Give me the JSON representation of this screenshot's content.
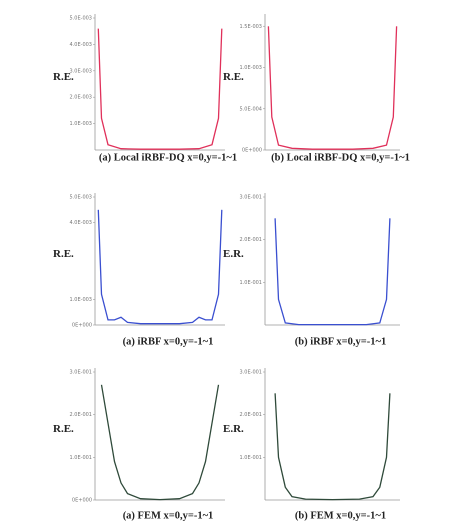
{
  "chart_data": [
    {
      "type": "line",
      "caption": "(a) Local iRBF-DQ x=0,y=-1~1",
      "ylabel": "R.E.",
      "color": "#e0305a",
      "x": [
        -0.95,
        -0.9,
        -0.8,
        -0.6,
        -0.3,
        0,
        0.3,
        0.6,
        0.8,
        0.9,
        0.95
      ],
      "values": [
        0.0046,
        0.0012,
        0.0002,
        5e-05,
        3e-05,
        3e-05,
        3e-05,
        5e-05,
        0.0002,
        0.0012,
        0.0046
      ],
      "xlim": [
        -1,
        1
      ],
      "ylim": [
        0,
        0.005
      ],
      "yticks": [
        {
          "value": 0.001,
          "label": "1.0E-003"
        },
        {
          "value": 0.002,
          "label": "2.0E-003"
        },
        {
          "value": 0.003,
          "label": "3.0E-003"
        },
        {
          "value": 0.004,
          "label": "4.0E-003"
        },
        {
          "value": 0.005,
          "label": "5.0E-003"
        }
      ]
    },
    {
      "type": "line",
      "caption": "(b) Local iRBF-DQ x=0,y=-1~1",
      "ylabel": "R.E.",
      "color": "#e0305a",
      "x": [
        -0.95,
        -0.9,
        -0.8,
        -0.6,
        -0.3,
        0,
        0.3,
        0.6,
        0.8,
        0.9,
        0.95
      ],
      "values": [
        0.0015,
        0.0004,
        6e-05,
        2e-05,
        1e-05,
        1e-05,
        1e-05,
        2e-05,
        6e-05,
        0.0004,
        0.0015
      ],
      "xlim": [
        -1,
        1
      ],
      "ylim": [
        0,
        0.0016
      ],
      "yticks": [
        {
          "value": 0,
          "label": "0E+000"
        },
        {
          "value": 0.0005,
          "label": "5.0E-004"
        },
        {
          "value": 0.001,
          "label": "1.0E-003"
        },
        {
          "value": 0.0015,
          "label": "1.5E-003"
        }
      ]
    },
    {
      "type": "line",
      "caption": "(a) iRBF x=0,y=-1~1",
      "ylabel": "R.E.",
      "color": "#3a4fd0",
      "x": [
        -0.95,
        -0.9,
        -0.8,
        -0.7,
        -0.6,
        -0.5,
        -0.3,
        0,
        0.3,
        0.5,
        0.6,
        0.7,
        0.8,
        0.9,
        0.95
      ],
      "values": [
        0.0045,
        0.0012,
        0.0002,
        0.0002,
        0.0003,
        0.0001,
        5e-05,
        5e-05,
        5e-05,
        0.0001,
        0.0003,
        0.0002,
        0.0002,
        0.0012,
        0.0045
      ],
      "xlim": [
        -1,
        1
      ],
      "ylim": [
        0,
        0.005
      ],
      "yticks": [
        {
          "value": 0,
          "label": "0E+000"
        },
        {
          "value": 0.001,
          "label": "1.0E-003"
        },
        {
          "value": 0.004,
          "label": "4.0E-003"
        },
        {
          "value": 0.005,
          "label": "5.0E-003"
        }
      ]
    },
    {
      "type": "line",
      "caption": "(b) iRBF x=0,y=-1~1",
      "ylabel": "E.R.",
      "color": "#3a4fd0",
      "x": [
        -0.85,
        -0.8,
        -0.7,
        -0.5,
        -0.3,
        0,
        0.3,
        0.5,
        0.7,
        0.8,
        0.85
      ],
      "values": [
        0.25,
        0.06,
        0.005,
        0.001,
        0.001,
        0.001,
        0.001,
        0.001,
        0.005,
        0.06,
        0.25
      ],
      "xlim": [
        -1,
        1
      ],
      "ylim": [
        0,
        0.3
      ],
      "yticks": [
        {
          "value": 0.1,
          "label": "1.0E-001"
        },
        {
          "value": 0.2,
          "label": "2.0E-001"
        },
        {
          "value": 0.3,
          "label": "3.0E-001"
        }
      ]
    },
    {
      "type": "line",
      "caption": "(a) FEM x=0,y=-1~1",
      "ylabel": "R.E.",
      "color": "#2f4a3a",
      "x": [
        -0.9,
        -0.8,
        -0.7,
        -0.6,
        -0.5,
        -0.3,
        0,
        0.3,
        0.5,
        0.6,
        0.7,
        0.8,
        0.9
      ],
      "values": [
        0.27,
        0.18,
        0.09,
        0.04,
        0.015,
        0.003,
        0.001,
        0.003,
        0.015,
        0.04,
        0.09,
        0.18,
        0.27
      ],
      "xlim": [
        -1,
        1
      ],
      "ylim": [
        0,
        0.3
      ],
      "yticks": [
        {
          "value": 0,
          "label": "0E+000"
        },
        {
          "value": 0.1,
          "label": "1.0E-001"
        },
        {
          "value": 0.2,
          "label": "2.0E-001"
        },
        {
          "value": 0.3,
          "label": "3.0E-001"
        }
      ]
    },
    {
      "type": "line",
      "caption": "(b) FEM x=0,y=-1~1",
      "ylabel": "E.R.",
      "color": "#2f4a3a",
      "x": [
        -0.85,
        -0.8,
        -0.7,
        -0.6,
        -0.4,
        0,
        0.4,
        0.6,
        0.7,
        0.8,
        0.85
      ],
      "values": [
        0.25,
        0.1,
        0.03,
        0.008,
        0.002,
        0.001,
        0.002,
        0.008,
        0.03,
        0.1,
        0.25
      ],
      "xlim": [
        -1,
        1
      ],
      "ylim": [
        0,
        0.3
      ],
      "yticks": [
        {
          "value": 0.1,
          "label": "1.0E-001"
        },
        {
          "value": 0.2,
          "label": "2.0E-001"
        },
        {
          "value": 0.3,
          "label": "3.0E-001"
        }
      ]
    }
  ]
}
